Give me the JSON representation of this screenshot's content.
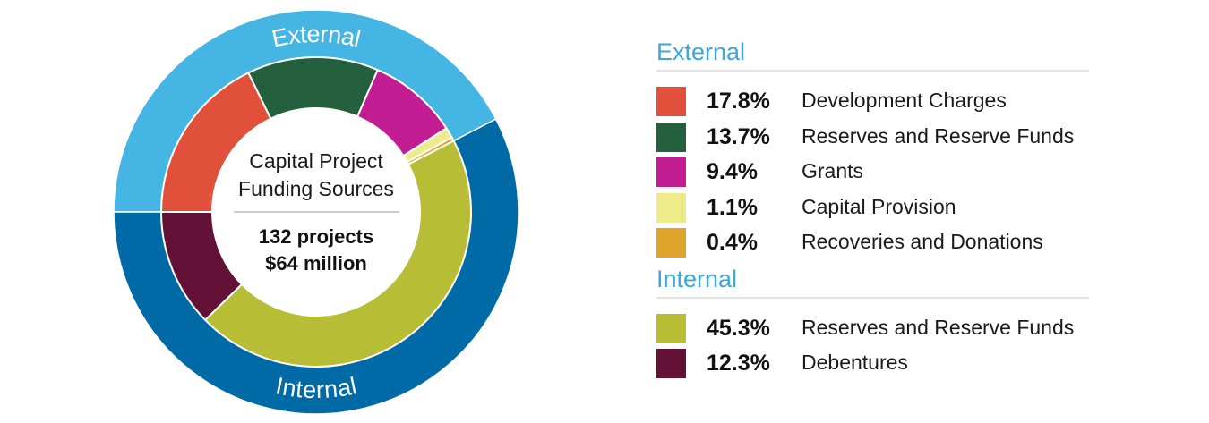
{
  "chart_data": {
    "type": "pie",
    "center": {
      "title_line1": "Capital Project",
      "title_line2": "Funding Sources",
      "projects": "132 projects",
      "amount": "$64 million"
    },
    "outer_ring": [
      {
        "label": "External",
        "value": 42.4,
        "color": "#45b5e4"
      },
      {
        "label": "Internal",
        "value": 57.6,
        "color": "#006aa6"
      }
    ],
    "groups": [
      {
        "title": "External",
        "items": [
          {
            "percent_label": "17.8%",
            "label": "Development Charges",
            "value": 17.8,
            "color": "#e0503a"
          },
          {
            "percent_label": "13.7%",
            "label": "Reserves and Reserve Funds",
            "value": 13.7,
            "color": "#245f3e"
          },
          {
            "percent_label": "9.4%",
            "label": "Grants",
            "value": 9.4,
            "color": "#c21d92"
          },
          {
            "percent_label": "1.1%",
            "label": "Capital Provision",
            "value": 1.1,
            "color": "#eeeb8a"
          },
          {
            "percent_label": "0.4%",
            "label": "Recoveries and Donations",
            "value": 0.4,
            "color": "#e0a42a"
          }
        ]
      },
      {
        "title": "Internal",
        "items": [
          {
            "percent_label": "45.3%",
            "label": "Reserves and Reserve Funds",
            "value": 45.3,
            "color": "#b7bd34"
          },
          {
            "percent_label": "12.3%",
            "label": "Debentures",
            "value": 12.3,
            "color": "#641138"
          }
        ]
      }
    ]
  }
}
